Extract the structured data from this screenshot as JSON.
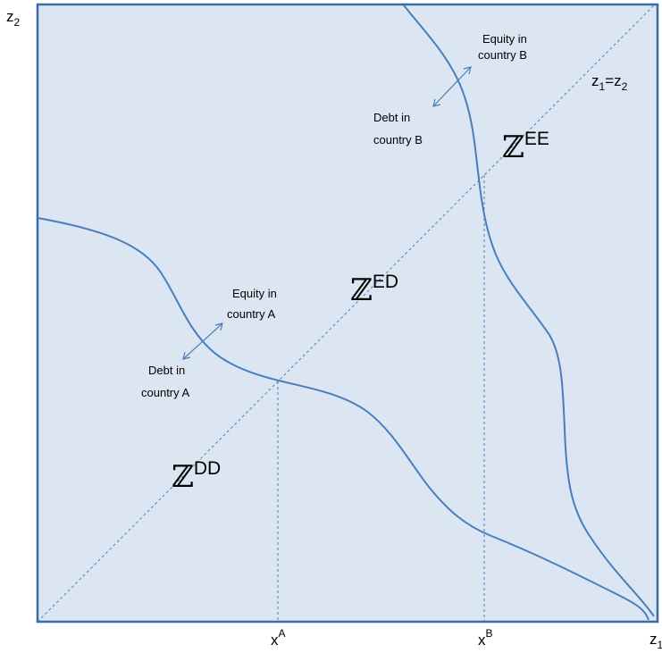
{
  "axes": {
    "y_label": "z",
    "y_sub": "2",
    "x_label": "z",
    "x_sub": "1"
  },
  "diagonal_label": {
    "a": "z",
    "a_sub": "1",
    "eq": "=z",
    "b_sub": "2"
  },
  "ticks": [
    {
      "base": "x",
      "sup": "A"
    },
    {
      "base": "x",
      "sup": "B"
    }
  ],
  "regions": [
    {
      "symbol": "ℤ",
      "sup": "EE"
    },
    {
      "symbol": "ℤ",
      "sup": "ED"
    },
    {
      "symbol": "ℤ",
      "sup": "DD"
    }
  ],
  "annotations": {
    "equity_b": [
      "Equity in",
      "country B"
    ],
    "debt_b": [
      "Debt in",
      "country B"
    ],
    "equity_a": [
      "Equity in",
      "country A"
    ],
    "debt_a": [
      "Debt in",
      "country A"
    ]
  },
  "colors": {
    "plot_fill": "#dce6f2",
    "curve": "#4a7ebb",
    "frame": "#2f5597"
  }
}
